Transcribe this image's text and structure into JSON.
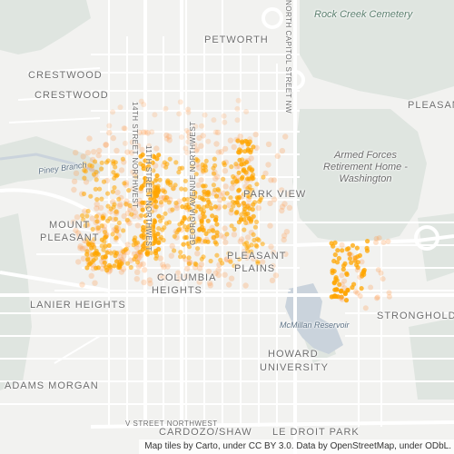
{
  "map": {
    "tile_credit": "Map tiles by Carto, under CC BY 3.0. Data by OpenStreetMap, under ODbL.",
    "colors": {
      "background": "#f2f2f0",
      "park": "#dfe5e0",
      "water": "#cad3dc",
      "road": "#ffffff",
      "point": "#ffa500",
      "point_faint": "#ff9a4d"
    },
    "labels": {
      "rock_creek_cemetery": "Rock Creek Cemetery",
      "petworth": "PETWORTH",
      "crestwood_1": "CRESTWOOD",
      "crestwood_2": "CRESTWOOD",
      "pleasant_edge": "PLEASAN",
      "armed_forces_1": "Armed Forces",
      "armed_forces_2": "Retirement Home -",
      "armed_forces_3": "Washington",
      "piney_branch": "Piney Branch",
      "park_view": "PARK VIEW",
      "mount_pleasant_1": "MOUNT",
      "mount_pleasant_2": "PLEASANT",
      "pleasant_plains_1": "PLEASANT",
      "pleasant_plains_2": "PLAINS",
      "columbia_heights_1": "COLUMBIA",
      "columbia_heights_2": "HEIGHTS",
      "lanier_heights": "LANIER HEIGHTS",
      "stronghold": "STRONGHOLD",
      "mcmillan_reservoir": "McMillan Reservoir",
      "howard_1": "HOWARD",
      "howard_2": "UNIVERSITY",
      "adams_morgan": "ADAMS MORGAN",
      "v_street": "V STREET NORTHWEST",
      "cardozo_shaw": "CARDOZO/SHAW",
      "le_droit_park": "LE DROIT PARK",
      "street_14th": "14TH STREET NORTHWEST",
      "street_georgia": "GEORGIA AVENUE NORTHWEST",
      "street_north_capitol": "NORTH CAPITOL STREET NW",
      "street_11th": "11TH STREET NORTHWEST"
    }
  }
}
